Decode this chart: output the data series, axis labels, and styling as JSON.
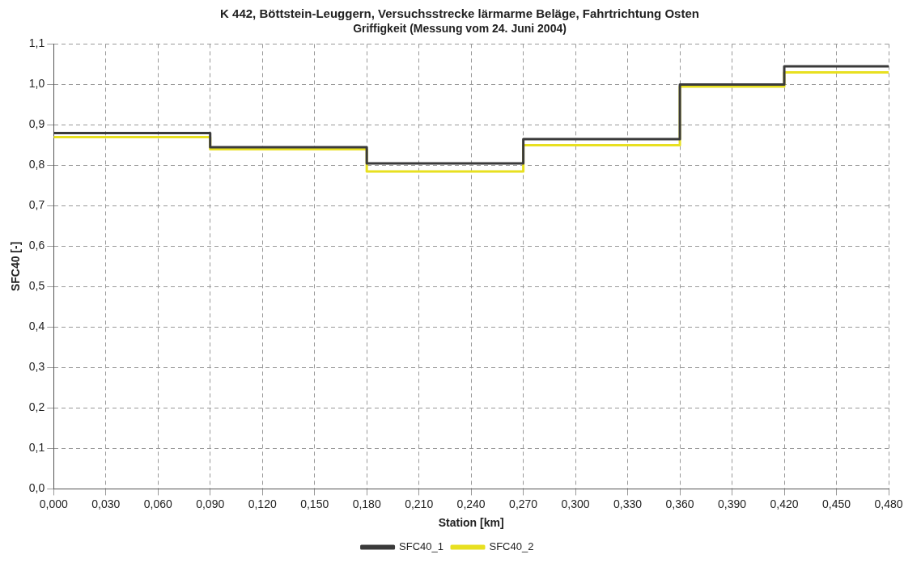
{
  "chart_data": {
    "type": "step",
    "title": "K 442, Böttstein-Leuggern, Versuchsstrecke lärmarme Beläge, Fahrtrichtung Osten",
    "subtitle": "Griffigkeit (Messung vom 24. Juni 2004)",
    "xlabel": "Station [km]",
    "ylabel": "SFC40 [-]",
    "x": [
      0,
      0.09,
      0.18,
      0.27,
      0.36,
      0.42,
      0.48
    ],
    "series": [
      {
        "name": "SFC40_1",
        "color": "#3a3a3a",
        "values": [
          0.88,
          0.845,
          0.805,
          0.865,
          1.0,
          1.045,
          1.045
        ]
      },
      {
        "name": "SFC40_2",
        "color": "#e8e020",
        "values": [
          0.87,
          0.84,
          0.785,
          0.85,
          0.995,
          1.03,
          1.03
        ]
      }
    ],
    "xlim": [
      0,
      0.48
    ],
    "xticks": [
      {
        "value": 0,
        "label": "0,000"
      },
      {
        "value": 0.03,
        "label": "0,030"
      },
      {
        "value": 0.06,
        "label": "0,060"
      },
      {
        "value": 0.09,
        "label": "0,090"
      },
      {
        "value": 0.12,
        "label": "0,120"
      },
      {
        "value": 0.15,
        "label": "0,150"
      },
      {
        "value": 0.18,
        "label": "0,180"
      },
      {
        "value": 0.21,
        "label": "0,210"
      },
      {
        "value": 0.24,
        "label": "0,240"
      },
      {
        "value": 0.27,
        "label": "0,270"
      },
      {
        "value": 0.3,
        "label": "0,300"
      },
      {
        "value": 0.33,
        "label": "0,330"
      },
      {
        "value": 0.36,
        "label": "0,360"
      },
      {
        "value": 0.39,
        "label": "0,390"
      },
      {
        "value": 0.42,
        "label": "0,420"
      },
      {
        "value": 0.45,
        "label": "0,450"
      },
      {
        "value": 0.48,
        "label": "0,480"
      }
    ],
    "ylim": [
      0,
      1.1
    ],
    "yticks": [
      {
        "value": 0,
        "label": "0,0"
      },
      {
        "value": 0.1,
        "label": "0,1"
      },
      {
        "value": 0.2,
        "label": "0,2"
      },
      {
        "value": 0.3,
        "label": "0,3"
      },
      {
        "value": 0.4,
        "label": "0,4"
      },
      {
        "value": 0.5,
        "label": "0,5"
      },
      {
        "value": 0.6,
        "label": "0,6"
      },
      {
        "value": 0.7,
        "label": "0,7"
      },
      {
        "value": 0.8,
        "label": "0,8"
      },
      {
        "value": 0.9,
        "label": "0,9"
      },
      {
        "value": 1.0,
        "label": "1,0"
      },
      {
        "value": 1.1,
        "label": "1,1"
      }
    ],
    "grid": true,
    "legend": "bottom",
    "marker": "none",
    "line_style": "solid"
  }
}
